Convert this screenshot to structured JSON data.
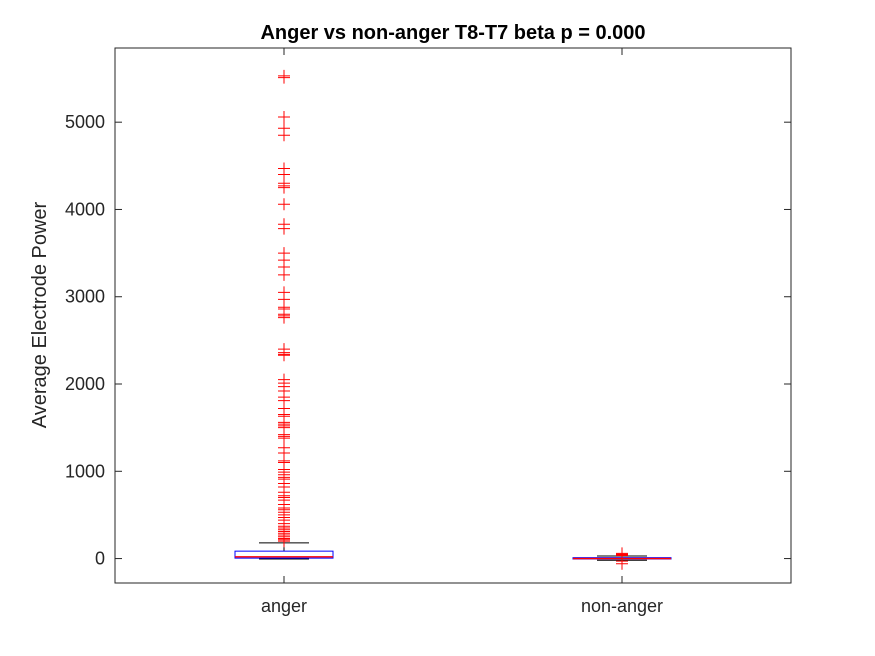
{
  "chart_data": {
    "type": "boxplot",
    "title": "Anger vs non-anger T8-T7 beta p = 0.000",
    "xlabel": "",
    "ylabel": "Average Electrode Power",
    "categories": [
      "anger",
      "non-anger"
    ],
    "ylim": [
      -280,
      5850
    ],
    "yticks": [
      0,
      1000,
      2000,
      3000,
      4000,
      5000
    ],
    "ytick_labels": [
      "0",
      "1000",
      "2000",
      "3000",
      "4000",
      "5000"
    ],
    "grid": false,
    "colors": {
      "box": "#0000ff",
      "median": "#ff0000",
      "whisker": "#000000",
      "outlier": "#ff0000",
      "axes": "#262626"
    },
    "boxes": [
      {
        "category": "anger",
        "whisker_low": -5,
        "q1": 5,
        "median": 20,
        "q3": 85,
        "whisker_high": 180,
        "outliers": [
          5530,
          5510,
          5060,
          4930,
          4850,
          4470,
          4400,
          4300,
          4270,
          4250,
          4060,
          3830,
          3780,
          3500,
          3420,
          3340,
          3250,
          3050,
          2970,
          2880,
          2860,
          2800,
          2780,
          2760,
          2400,
          2360,
          2340,
          2330,
          2050,
          2010,
          1970,
          1920,
          1850,
          1810,
          1720,
          1650,
          1630,
          1560,
          1540,
          1520,
          1500,
          1420,
          1400,
          1380,
          1270,
          1210,
          1120,
          1100,
          1020,
          990,
          960,
          930,
          910,
          860,
          820,
          760,
          720,
          700,
          670,
          620,
          580,
          560,
          530,
          500,
          470,
          440,
          400,
          370,
          350,
          330,
          310,
          290,
          270,
          250,
          230,
          215,
          200
        ]
      },
      {
        "category": "non-anger",
        "whisker_low": -20,
        "q1": -5,
        "median": 0,
        "q3": 10,
        "whisker_high": 30,
        "outliers": [
          60,
          50,
          45,
          40,
          38,
          35,
          -30,
          -60
        ]
      }
    ]
  }
}
